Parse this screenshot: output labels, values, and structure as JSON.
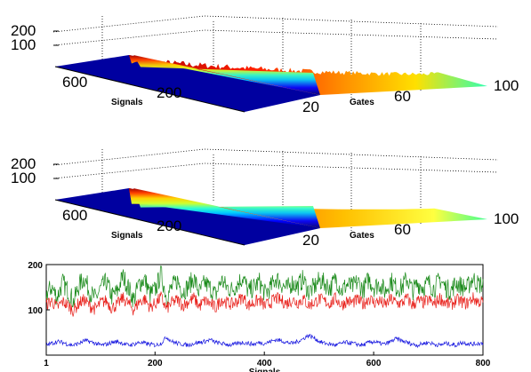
{
  "chart_data": [
    {
      "type": "surface",
      "panel": "top-3d",
      "xlabel": "Signals",
      "ylabel": "Gates",
      "x_ticks": [
        "600",
        "200"
      ],
      "y_ticks": [
        "20",
        "60",
        "100"
      ],
      "z_ticks": [
        "200",
        "100"
      ],
      "xlim": [
        1,
        800
      ],
      "ylim": [
        1,
        100
      ],
      "zlim": [
        0,
        250
      ],
      "colormap": "jet",
      "grid": true,
      "surface_peak_near_gate": 20,
      "surface_peak_value": 180,
      "surface_value_at_gate_100": 40,
      "noisy": true
    },
    {
      "type": "surface",
      "panel": "middle-3d",
      "xlabel": "Signals",
      "ylabel": "Gates",
      "x_ticks": [
        "600",
        "200"
      ],
      "y_ticks": [
        "20",
        "60",
        "100"
      ],
      "z_ticks": [
        "200",
        "100"
      ],
      "xlim": [
        1,
        800
      ],
      "ylim": [
        1,
        100
      ],
      "zlim": [
        0,
        250
      ],
      "colormap": "jet",
      "grid": true,
      "surface_peak_near_gate": 20,
      "surface_peak_value": 160,
      "surface_value_at_gate_100": 40,
      "noisy": false
    },
    {
      "type": "line",
      "panel": "bottom-2d",
      "xlabel": "Signals",
      "ylabel": "",
      "x_ticks": [
        "1",
        "200",
        "400",
        "600",
        "800"
      ],
      "y_ticks": [
        "100",
        "200"
      ],
      "xlim": [
        1,
        800
      ],
      "ylim": [
        0,
        200
      ],
      "grid": false,
      "series": [
        {
          "color": "#1a8a1a",
          "mean": 140,
          "spread": 28,
          "values_sampled_every_10": [
            135,
            150,
            128,
            160,
            142,
            118,
            155,
            170,
            138,
            125,
            148,
            162,
            130,
            140,
            175,
            150,
            122,
            158,
            168,
            134,
            145,
            180,
            128,
            150,
            165,
            140,
            152,
            170,
            138,
            160,
            148,
            132,
            166,
            150,
            144,
            158,
            172,
            140,
            150,
            162,
            136,
            148,
            170,
            158,
            146,
            160,
            152,
            168,
            140,
            150,
            165,
            158,
            148,
            170,
            142,
            156,
            150,
            162,
            144,
            168,
            150,
            158,
            140,
            165,
            150,
            148,
            170,
            142,
            158,
            150,
            160,
            146,
            168,
            150,
            142,
            160,
            152,
            148,
            170,
            156
          ]
        },
        {
          "color": "#e8201a",
          "mean": 115,
          "spread": 18,
          "values_sampled_every_10": [
            112,
            120,
            105,
            118,
            110,
            98,
            115,
            122,
            108,
            102,
            116,
            120,
            104,
            112,
            126,
            114,
            100,
            118,
            124,
            106,
            114,
            128,
            102,
            116,
            122,
            110,
            118,
            126,
            108,
            120,
            114,
            104,
            124,
            116,
            112,
            120,
            128,
            110,
            116,
            122,
            108,
            116,
            126,
            120,
            114,
            122,
            116,
            124,
            110,
            116,
            124,
            118,
            114,
            126,
            110,
            120,
            116,
            122,
            112,
            126,
            116,
            120,
            110,
            124,
            116,
            114,
            126,
            110,
            120,
            116,
            122,
            112,
            126,
            116,
            110,
            122,
            118,
            114,
            126,
            118
          ]
        },
        {
          "color": "#1a1ae0",
          "mean": 25,
          "spread": 6,
          "values_sampled_every_10": [
            22,
            26,
            30,
            28,
            24,
            22,
            26,
            32,
            30,
            26,
            22,
            24,
            28,
            30,
            26,
            22,
            24,
            28,
            26,
            24,
            22,
            26,
            40,
            30,
            26,
            24,
            22,
            26,
            28,
            30,
            34,
            28,
            26,
            24,
            22,
            26,
            28,
            26,
            24,
            28,
            26,
            30,
            34,
            32,
            28,
            26,
            30,
            36,
            44,
            38,
            30,
            26,
            24,
            22,
            26,
            28,
            26,
            24,
            22,
            28,
            30,
            26,
            24,
            30,
            36,
            32,
            28,
            24,
            22,
            26,
            28,
            24,
            22,
            26,
            24,
            22,
            28,
            26,
            24,
            26
          ]
        }
      ]
    }
  ]
}
